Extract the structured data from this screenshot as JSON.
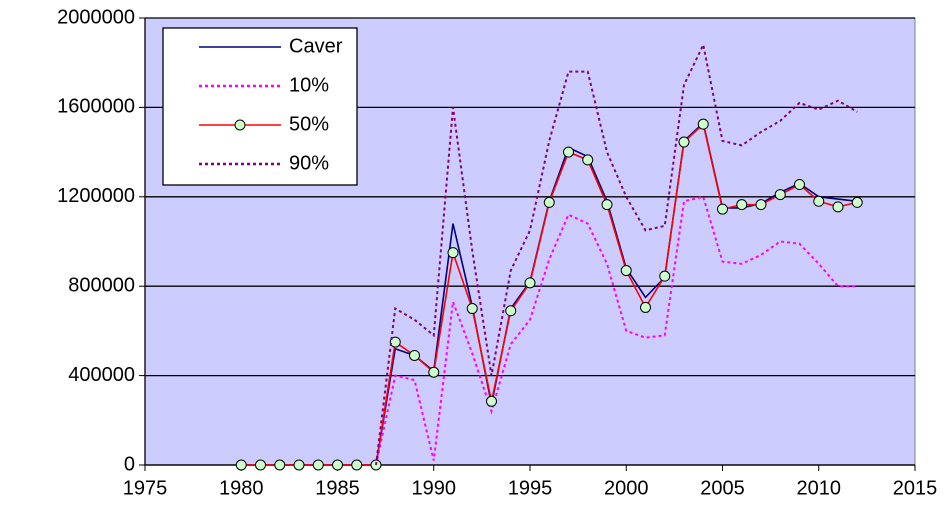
{
  "chart_data": {
    "type": "line",
    "x": [
      1980,
      1981,
      1982,
      1983,
      1984,
      1985,
      1986,
      1987,
      1988,
      1989,
      1990,
      1991,
      1992,
      1993,
      1994,
      1995,
      1996,
      1997,
      1998,
      1999,
      2000,
      2001,
      2002,
      2003,
      2004,
      2005,
      2006,
      2007,
      2008,
      2009,
      2010,
      2011,
      2012
    ],
    "series": [
      {
        "name": "Caver",
        "color": "#000080",
        "line_style": "solid",
        "marker": "none",
        "values": [
          0,
          0,
          0,
          0,
          0,
          0,
          0,
          0,
          520000,
          490000,
          420000,
          1080000,
          710000,
          270000,
          700000,
          820000,
          1180000,
          1420000,
          1380000,
          1180000,
          880000,
          750000,
          840000,
          1450000,
          1530000,
          1150000,
          1150000,
          1170000,
          1220000,
          1260000,
          1200000,
          1190000,
          1180000
        ]
      },
      {
        "name": "10%",
        "color": "#ff00ff",
        "line_style": "dotted",
        "marker": "none",
        "values": [
          null,
          null,
          null,
          null,
          null,
          null,
          null,
          0,
          400000,
          380000,
          20000,
          730000,
          500000,
          240000,
          540000,
          650000,
          920000,
          1120000,
          1080000,
          900000,
          600000,
          570000,
          580000,
          1180000,
          1200000,
          910000,
          900000,
          940000,
          1000000,
          990000,
          900000,
          800000,
          800000
        ]
      },
      {
        "name": "50%",
        "color": "#ff0000",
        "line_style": "solid",
        "marker": "circle",
        "marker_color": "#ccffcc",
        "values": [
          0,
          0,
          0,
          0,
          0,
          0,
          0,
          0,
          550000,
          490000,
          415000,
          950000,
          700000,
          285000,
          690000,
          815000,
          1175000,
          1400000,
          1365000,
          1165000,
          870000,
          705000,
          845000,
          1445000,
          1525000,
          1145000,
          1165000,
          1165000,
          1210000,
          1255000,
          1180000,
          1155000,
          1175000
        ]
      },
      {
        "name": "90%",
        "color": "#800080",
        "line_style": "dotted",
        "marker": "none",
        "values": [
          null,
          null,
          null,
          null,
          null,
          null,
          null,
          0,
          700000,
          650000,
          580000,
          1600000,
          960000,
          400000,
          870000,
          1050000,
          1450000,
          1760000,
          1760000,
          1400000,
          1200000,
          1050000,
          1070000,
          1700000,
          1880000,
          1450000,
          1430000,
          1490000,
          1540000,
          1620000,
          1590000,
          1630000,
          1580000
        ]
      }
    ],
    "xlim": [
      1975,
      2015
    ],
    "xticks": [
      1975,
      1980,
      1985,
      1990,
      1995,
      2000,
      2005,
      2010,
      2015
    ],
    "ylim": [
      0,
      2000000
    ],
    "yticks": [
      0,
      400000,
      800000,
      1200000,
      1600000,
      2000000
    ],
    "grid": true,
    "legend": "upper left",
    "plot_background": "#ccccff"
  }
}
